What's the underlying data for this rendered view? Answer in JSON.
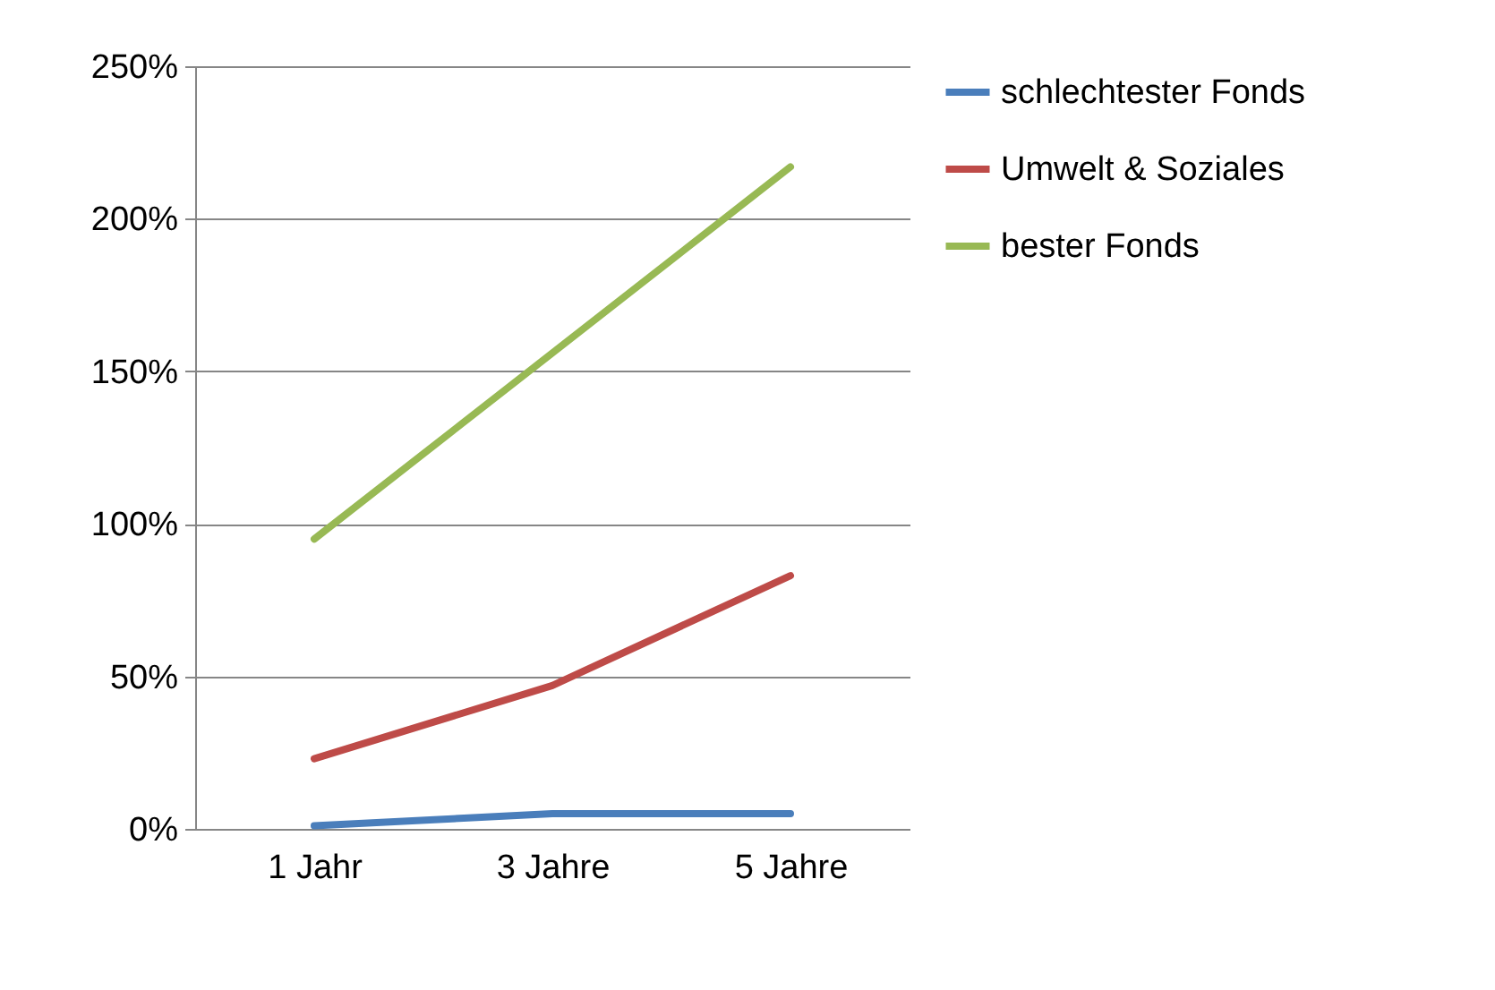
{
  "chart_data": {
    "type": "line",
    "categories": [
      "1 Jahr",
      "3 Jahre",
      "5 Jahre"
    ],
    "series": [
      {
        "name": "schlechtester Fonds",
        "color": "#4a7ebb",
        "values": [
          1,
          5,
          5
        ]
      },
      {
        "name": "Umwelt & Soziales",
        "color": "#be4b48",
        "values": [
          23,
          47,
          83
        ]
      },
      {
        "name": "bester Fonds",
        "color": "#98b954",
        "values": [
          95,
          156,
          217
        ]
      }
    ],
    "ylim": [
      0,
      250
    ],
    "yticks": [
      {
        "value": 0,
        "label": "0%"
      },
      {
        "value": 50,
        "label": "50%"
      },
      {
        "value": 100,
        "label": "100%"
      },
      {
        "value": 150,
        "label": "150%"
      },
      {
        "value": 200,
        "label": "200%"
      },
      {
        "value": 250,
        "label": "250%"
      }
    ],
    "grid": "y",
    "legend": "right",
    "marker": "none",
    "line_style": "solid"
  }
}
